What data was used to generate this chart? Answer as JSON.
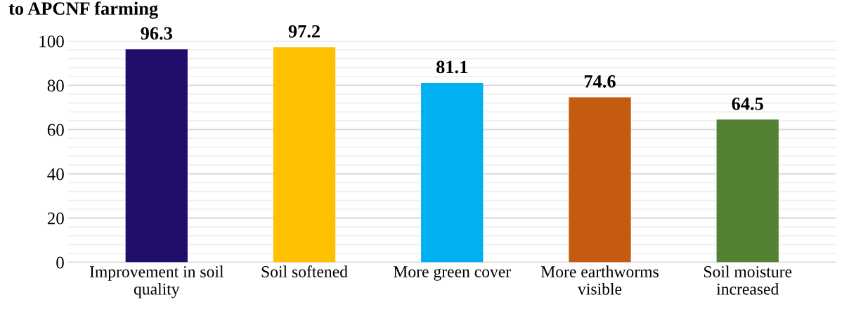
{
  "chart_data": {
    "type": "bar",
    "title": "to APCNF farming",
    "categories": [
      "Improvement in soil\nquality",
      "Soil softened",
      "More green cover",
      "More earthworms\nvisible",
      "Soil moisture\nincreased"
    ],
    "values": [
      96.3,
      97.2,
      81.1,
      74.6,
      64.5
    ],
    "colors": [
      "#210e6b",
      "#ffc000",
      "#00b0f0",
      "#c55a11",
      "#548235"
    ],
    "ylim": [
      0,
      100
    ],
    "yticks": [
      0,
      20,
      40,
      60,
      80,
      100
    ],
    "grid": "y",
    "data_labels": true,
    "legend": false
  }
}
